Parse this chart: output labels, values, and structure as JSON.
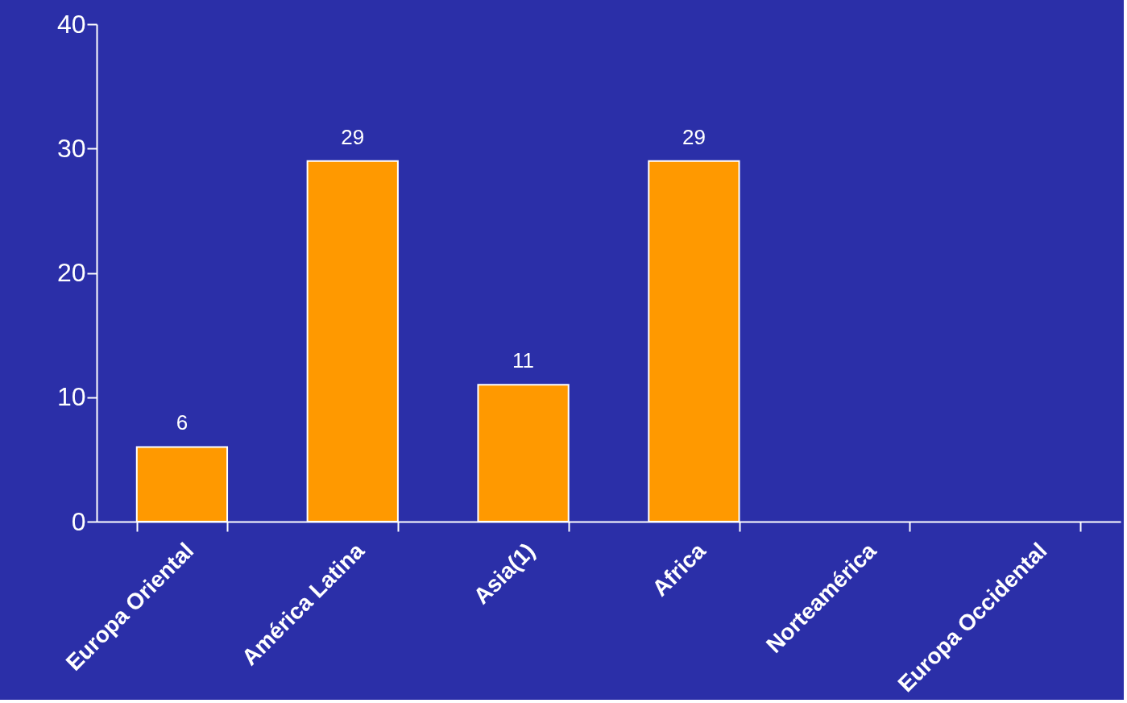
{
  "chart_data": {
    "type": "bar",
    "categories": [
      "Europa Oriental",
      "América Latina",
      "Asia(1)",
      "Africa",
      "Norteamérica",
      "Europa Occidental"
    ],
    "values": [
      6,
      29,
      11,
      29,
      null,
      null
    ],
    "color": "#ff9900",
    "ylim": [
      0,
      40
    ],
    "yticks": [
      0,
      10,
      20,
      30,
      40
    ],
    "grid": false,
    "data_labels": true
  }
}
